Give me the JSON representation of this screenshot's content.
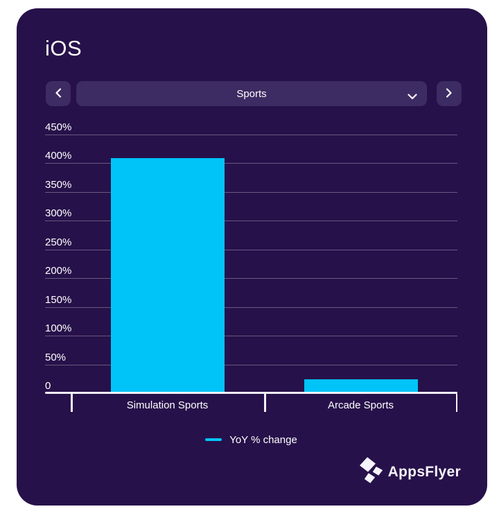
{
  "card": {
    "title": "iOS"
  },
  "nav": {
    "selected_category": "Sports",
    "prev_icon": "chevron-left",
    "next_icon": "chevron-right",
    "dropdown_icon": "chevron-down"
  },
  "chart_data": {
    "type": "bar",
    "title": "iOS",
    "categories": [
      "Simulation Sports",
      "Arcade Sports"
    ],
    "series": [
      {
        "name": "YoY % change",
        "values": [
          410,
          25
        ]
      }
    ],
    "xlabel": "",
    "ylabel": "",
    "ylim": [
      0,
      450
    ],
    "ytick_labels": [
      "0",
      "50%",
      "100%",
      "150%",
      "200%",
      "250%",
      "300%",
      "350%",
      "400%",
      "450%"
    ],
    "grid": true,
    "legend_position": "bottom-center",
    "bar_color": "#00c3f8"
  },
  "legend": {
    "label": "YoY % change"
  },
  "branding": {
    "name": "AppsFlyer"
  },
  "colors": {
    "page_background": "#ffffff",
    "card_background": "#27114a",
    "control_background": "#3d2b63",
    "bar": "#00c3f8",
    "text": "#ffffff",
    "gridline": "rgba(255,255,255,0.30)",
    "axis": "#f3f1f8"
  }
}
